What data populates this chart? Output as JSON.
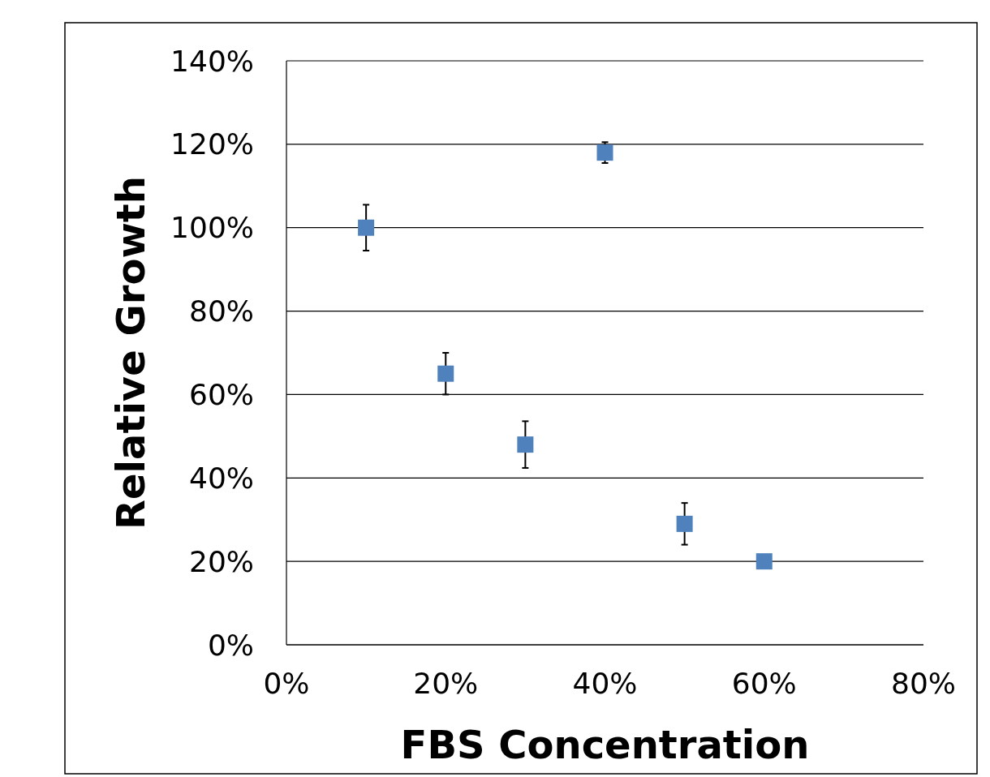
{
  "chart_data": {
    "type": "scatter",
    "xlabel": "FBS Concentration",
    "ylabel": "Relative Growth",
    "x": [
      10,
      20,
      30,
      40,
      50,
      60
    ],
    "values": [
      100,
      65,
      48,
      118,
      29,
      20
    ],
    "errors": [
      5.5,
      5,
      5.6,
      2.5,
      5,
      null
    ],
    "color": "#4f81bd",
    "marker": "square",
    "grid": "y",
    "xlim": [
      0,
      80
    ],
    "xticks": [
      {
        "value": 0,
        "label": "0%"
      },
      {
        "value": 20,
        "label": "20%"
      },
      {
        "value": 40,
        "label": "40%"
      },
      {
        "value": 60,
        "label": "60%"
      },
      {
        "value": 80,
        "label": "80%"
      }
    ],
    "ylim": [
      0,
      140
    ],
    "yticks": [
      {
        "value": 0,
        "label": "0%"
      },
      {
        "value": 20,
        "label": "20%"
      },
      {
        "value": 40,
        "label": "40%"
      },
      {
        "value": 60,
        "label": "60%"
      },
      {
        "value": 80,
        "label": "80%"
      },
      {
        "value": 100,
        "label": "100%"
      },
      {
        "value": 120,
        "label": "120%"
      },
      {
        "value": 140,
        "label": "140%"
      }
    ]
  }
}
